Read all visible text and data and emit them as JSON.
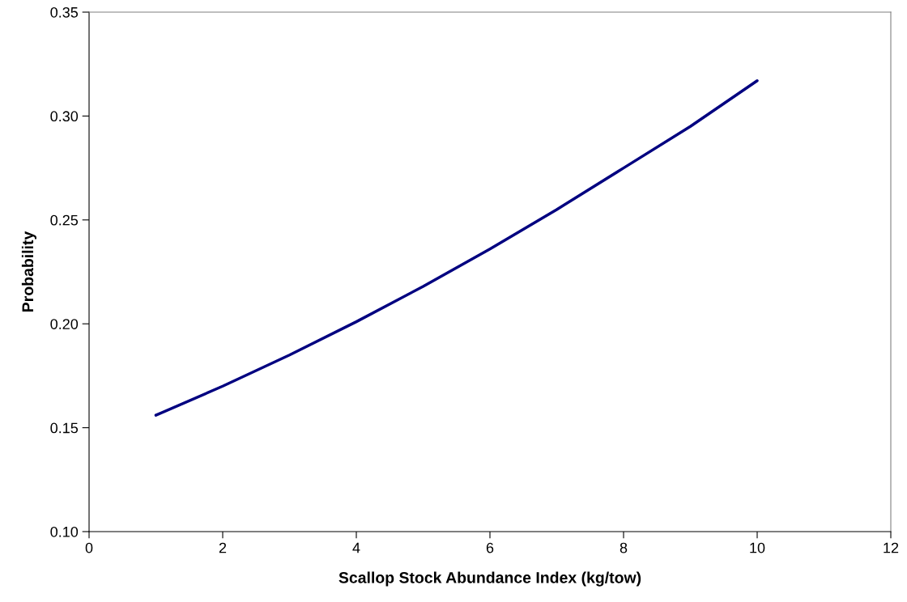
{
  "chart_data": {
    "type": "line",
    "xlabel": "Scallop Stock Abundance Index (kg/tow)",
    "ylabel": "Probability",
    "x": [
      1,
      2,
      3,
      4,
      5,
      6,
      7,
      8,
      9,
      10
    ],
    "series": [
      {
        "color": "#000080",
        "values": [
          0.156,
          0.17,
          0.185,
          0.201,
          0.218,
          0.236,
          0.255,
          0.275,
          0.295,
          0.317
        ]
      }
    ],
    "xlim": [
      0,
      12
    ],
    "xticks": [
      0,
      2,
      4,
      6,
      8,
      10,
      12
    ],
    "ylim": [
      0.1,
      0.35
    ],
    "yticks": [
      {
        "value": 0.1,
        "label": "0.10"
      },
      {
        "value": 0.15,
        "label": "0.15"
      },
      {
        "value": 0.2,
        "label": "0.20"
      },
      {
        "value": 0.25,
        "label": "0.25"
      },
      {
        "value": 0.3,
        "label": "0.30"
      },
      {
        "value": 0.35,
        "label": "0.35"
      }
    ],
    "grid": false,
    "legend": false,
    "marker": "none",
    "line_style": "solid"
  }
}
